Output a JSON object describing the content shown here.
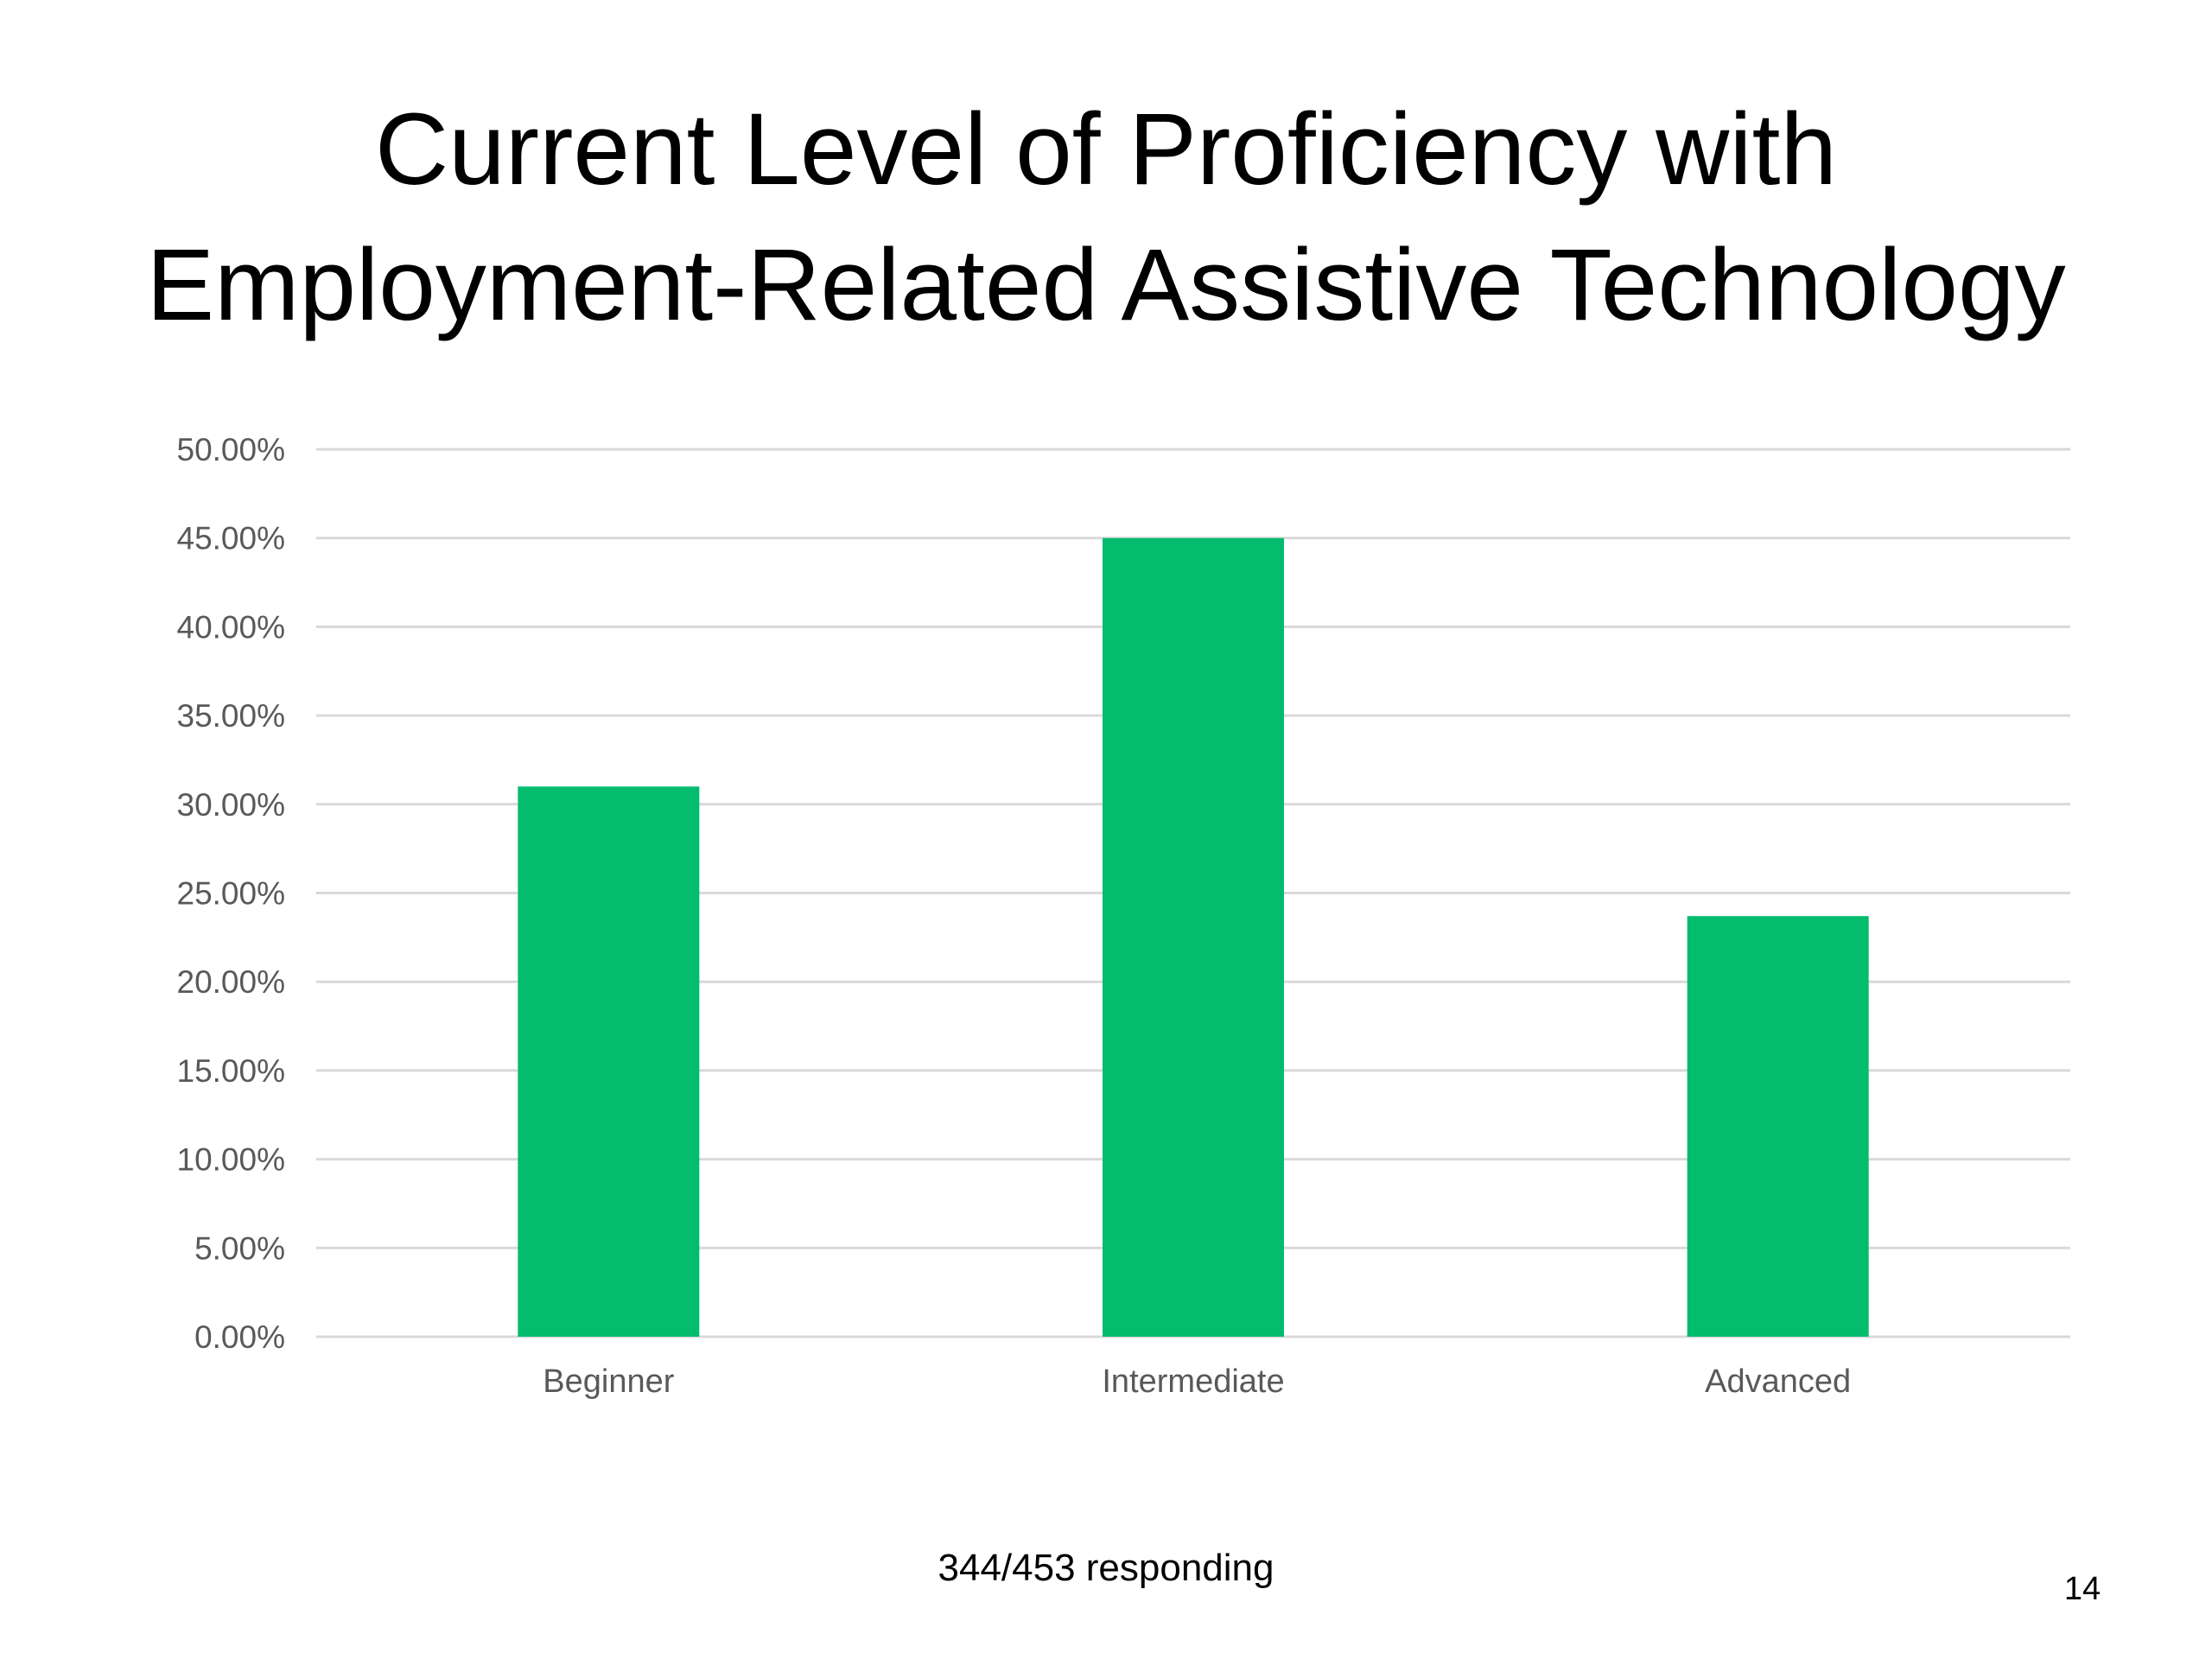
{
  "slide": {
    "title_line1": "Current Level of Proficiency with",
    "title_line2": "Employment-Related Assistive Technology",
    "footnote": "344/453 responding",
    "page_number": "14"
  },
  "colors": {
    "bar": "#04BC6E",
    "grid": "#D9D9D9",
    "tick_label": "#595959"
  },
  "chart_data": {
    "type": "bar",
    "title": "",
    "xlabel": "",
    "ylabel": "",
    "categories": [
      "Beginner",
      "Intermediate",
      "Advanced"
    ],
    "values": [
      31.0,
      45.0,
      23.7
    ],
    "ylim": [
      0,
      50
    ],
    "yticks": [
      "0.00%",
      "5.00%",
      "10.00%",
      "15.00%",
      "20.00%",
      "25.00%",
      "30.00%",
      "35.00%",
      "40.00%",
      "45.00%",
      "50.00%"
    ],
    "grid": true,
    "legend": "none"
  }
}
